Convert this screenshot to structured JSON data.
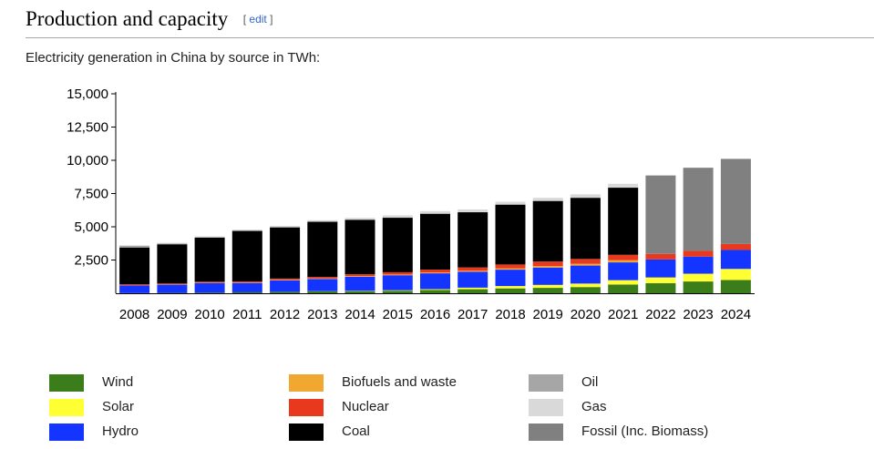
{
  "section": {
    "title": "Production and capacity",
    "edit_open": "[ ",
    "edit_label": "edit",
    "edit_close": " ]"
  },
  "caption": "Electricity generation in China by source in TWh:",
  "chart_data": {
    "type": "bar",
    "stacked": true,
    "title": "",
    "xlabel": "",
    "ylabel": "",
    "ylim": [
      0,
      15000
    ],
    "yticks": [
      2500,
      5000,
      7500,
      10000,
      12500,
      15000
    ],
    "ytick_labels": [
      "2,500",
      "5,000",
      "7,500",
      "10,000",
      "12,500",
      "15,000"
    ],
    "grid": false,
    "legend_position": "bottom",
    "categories": [
      "2008",
      "2009",
      "2010",
      "2011",
      "2012",
      "2013",
      "2014",
      "2015",
      "2016",
      "2017",
      "2018",
      "2019",
      "2020",
      "2021",
      "2022",
      "2023",
      "2024"
    ],
    "series": [
      {
        "name": "Wind",
        "color": "#3a7d1a",
        "values": [
          13,
          27,
          45,
          70,
          96,
          138,
          156,
          186,
          241,
          303,
          366,
          406,
          467,
          656,
          762,
          886,
          997
        ]
      },
      {
        "name": "Solar",
        "color": "#ffff33",
        "values": [
          0,
          0,
          1,
          3,
          6,
          15,
          24,
          39,
          67,
          118,
          177,
          224,
          261,
          327,
          428,
          584,
          834
        ]
      },
      {
        "name": "Hydro",
        "color": "#1435ff",
        "values": [
          585,
          616,
          722,
          699,
          872,
          920,
          1064,
          1130,
          1193,
          1194,
          1232,
          1302,
          1355,
          1340,
          1352,
          1285,
          1425
        ]
      },
      {
        "name": "Biofuels and waste",
        "color": "#f0a830",
        "values": [
          15,
          21,
          25,
          30,
          35,
          40,
          50,
          55,
          65,
          80,
          95,
          110,
          130,
          160,
          0,
          0,
          0
        ]
      },
      {
        "name": "Nuclear",
        "color": "#e8391e",
        "values": [
          68,
          70,
          74,
          86,
          97,
          112,
          133,
          171,
          213,
          248,
          295,
          348,
          366,
          408,
          418,
          435,
          451
        ]
      },
      {
        "name": "Coal",
        "color": "#000000",
        "values": [
          2760,
          2950,
          3320,
          3800,
          3850,
          4150,
          4100,
          4100,
          4200,
          4150,
          4500,
          4550,
          4600,
          5050,
          0,
          0,
          0
        ]
      },
      {
        "name": "Oil",
        "color": "#a6a6a6",
        "values": [
          120,
          55,
          25,
          20,
          15,
          10,
          10,
          10,
          10,
          10,
          10,
          10,
          10,
          10,
          0,
          0,
          0
        ]
      },
      {
        "name": "Gas",
        "color": "#d9d9d9",
        "values": [
          45,
          55,
          70,
          85,
          100,
          110,
          130,
          170,
          190,
          200,
          210,
          230,
          250,
          280,
          0,
          0,
          0
        ]
      },
      {
        "name": "Fossil (Inc. Biomass)",
        "color": "#808080",
        "values": [
          0,
          0,
          0,
          0,
          0,
          0,
          0,
          0,
          0,
          0,
          0,
          0,
          0,
          0,
          5900,
          6250,
          6400
        ]
      }
    ]
  }
}
